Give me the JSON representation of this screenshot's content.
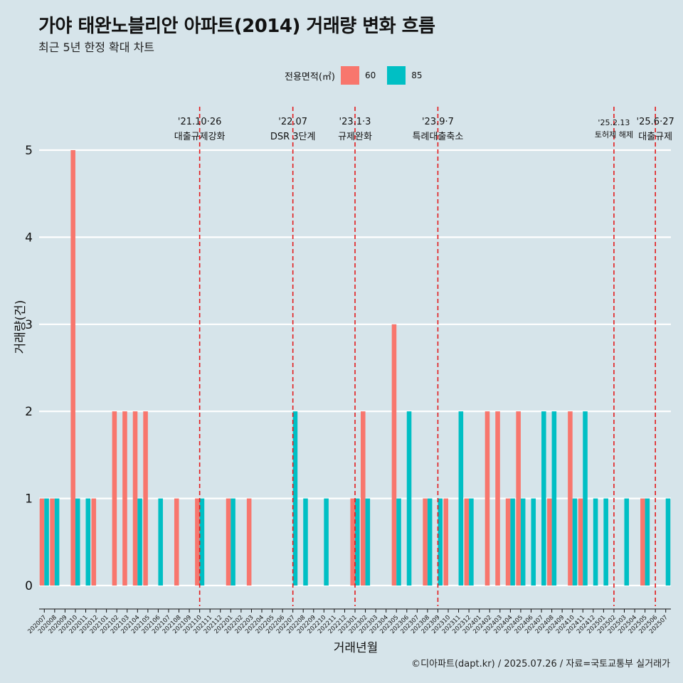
{
  "title": "가야 태완노블리안 아파트(2014) 거래량 변화 흐름",
  "subtitle": "최근 5년 한정 확대 차트",
  "legend_title": "전용면적(㎡)",
  "caption": "©디아파트(dapt.kr) / 2025.07.26 / 자료=국토교통부 실거래가",
  "colors": {
    "60": "#f8766d",
    "85": "#00bfc4",
    "background": "#d6e4ea",
    "event_line": "#e31a1c",
    "grid": "#ffffff"
  },
  "chart_data": {
    "type": "bar",
    "xlabel": "거래년월",
    "ylabel": "거래량(건)",
    "ylim": [
      0,
      5
    ],
    "yticks": [
      0,
      1,
      2,
      3,
      4,
      5
    ],
    "grid": true,
    "legend_position": "top",
    "categories": [
      "202007",
      "202008",
      "202009",
      "202010",
      "202011",
      "202012",
      "202101",
      "202102",
      "202103",
      "202104",
      "202105",
      "202106",
      "202107",
      "202108",
      "202109",
      "202110",
      "202111",
      "202112",
      "202201",
      "202202",
      "202203",
      "202204",
      "202205",
      "202206",
      "202207",
      "202208",
      "202209",
      "202210",
      "202211",
      "202212",
      "202301",
      "202302",
      "202303",
      "202304",
      "202305",
      "202306",
      "202307",
      "202308",
      "202309",
      "202310",
      "202311",
      "202312",
      "202401",
      "202402",
      "202403",
      "202404",
      "202405",
      "202406",
      "202407",
      "202408",
      "202409",
      "202410",
      "202411",
      "202412",
      "202501",
      "202502",
      "202503",
      "202504",
      "202505",
      "202506",
      "202507"
    ],
    "series": [
      {
        "name": "60",
        "values": [
          1,
          1,
          0,
          5,
          0,
          1,
          0,
          2,
          2,
          2,
          2,
          0,
          0,
          1,
          0,
          1,
          0,
          0,
          1,
          0,
          1,
          0,
          0,
          0,
          0,
          0,
          0,
          0,
          0,
          0,
          1,
          2,
          0,
          0,
          3,
          0,
          0,
          1,
          0,
          1,
          0,
          1,
          0,
          2,
          2,
          1,
          2,
          0,
          0,
          1,
          0,
          2,
          1,
          0,
          0,
          0,
          0,
          0,
          1,
          0,
          0
        ]
      },
      {
        "name": "85",
        "values": [
          1,
          1,
          0,
          1,
          1,
          0,
          0,
          0,
          0,
          1,
          0,
          1,
          0,
          0,
          0,
          1,
          0,
          0,
          1,
          0,
          0,
          0,
          0,
          0,
          2,
          1,
          0,
          1,
          0,
          0,
          1,
          1,
          0,
          0,
          1,
          2,
          0,
          1,
          1,
          0,
          2,
          1,
          0,
          0,
          0,
          1,
          1,
          1,
          2,
          2,
          0,
          1,
          2,
          1,
          1,
          0,
          1,
          0,
          1,
          0,
          1
        ]
      }
    ],
    "events": [
      {
        "date": "202110",
        "label1": "'21.10·26",
        "label2": "대출규제강화"
      },
      {
        "date": "202207",
        "label1": "'22.07",
        "label2": "DSR 3단계"
      },
      {
        "date": "202301",
        "label1": "'23.1·3",
        "label2": "규제완화"
      },
      {
        "date": "202309",
        "label1": "'23.9·7",
        "label2": "특례대출축소"
      },
      {
        "date": "202502",
        "label1": "'25.2.13",
        "label2": "토허제 해제"
      },
      {
        "date": "202506",
        "label1": "'25.6·27",
        "label2": "대출규제"
      }
    ]
  }
}
